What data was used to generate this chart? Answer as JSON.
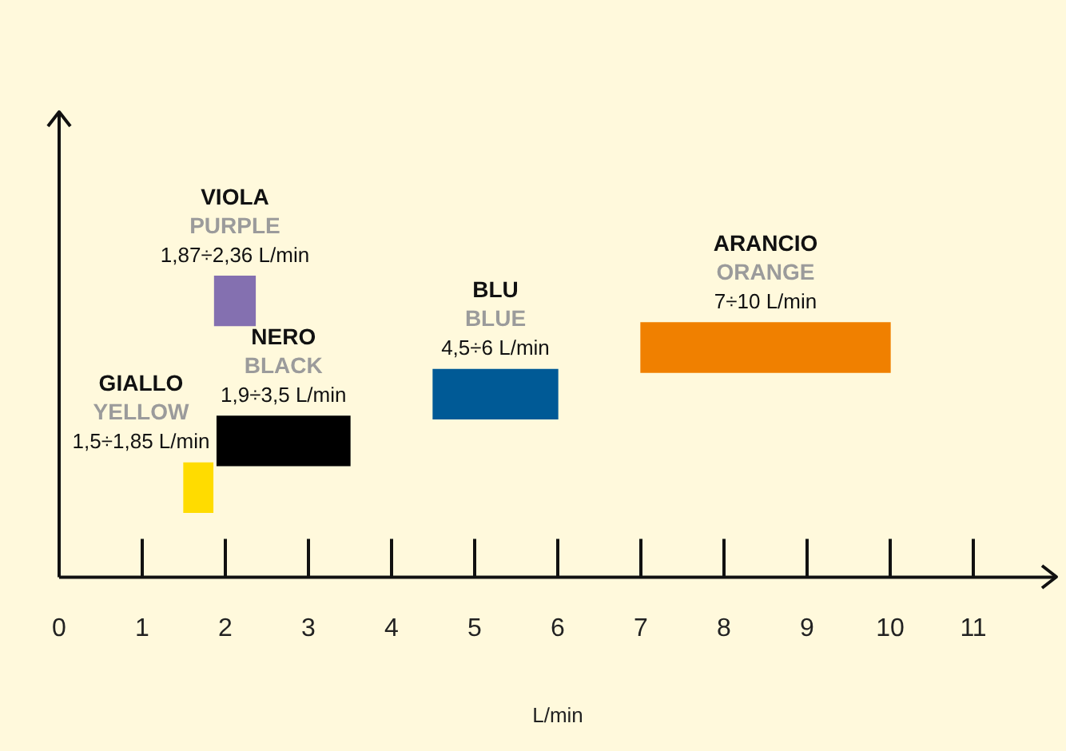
{
  "chart_data": {
    "type": "bar",
    "orientation": "horizontal",
    "categories": [
      null,
      null,
      null,
      null,
      null
    ],
    "base": [
      1.87,
      7,
      4.5,
      1.9,
      1.5
    ],
    "values": [
      0.49,
      3,
      1.5,
      1.6,
      0.35
    ],
    "colors": [
      "#8470b0",
      "#f08000",
      "#005a96",
      "#000000",
      "#ffdc00"
    ],
    "annotations": [
      "VIOLA",
      "PURPLE",
      "1,87÷2,36 L/min",
      "ARANCIO",
      "ORANGE",
      "7÷10 L/min",
      "BLU",
      "BLUE",
      "4,5÷6 L/min",
      "NERO",
      "BLACK",
      "1,9÷3,5 L/min",
      "GIALLO",
      "YELLOW",
      "1,5÷1,85 L/min"
    ],
    "xlabel": "L/min",
    "xlim": [
      0,
      12
    ],
    "xticks": [
      0,
      1,
      2,
      3,
      4,
      5,
      6,
      7,
      8,
      9,
      10,
      11
    ],
    "grid": false,
    "legend": false
  }
}
